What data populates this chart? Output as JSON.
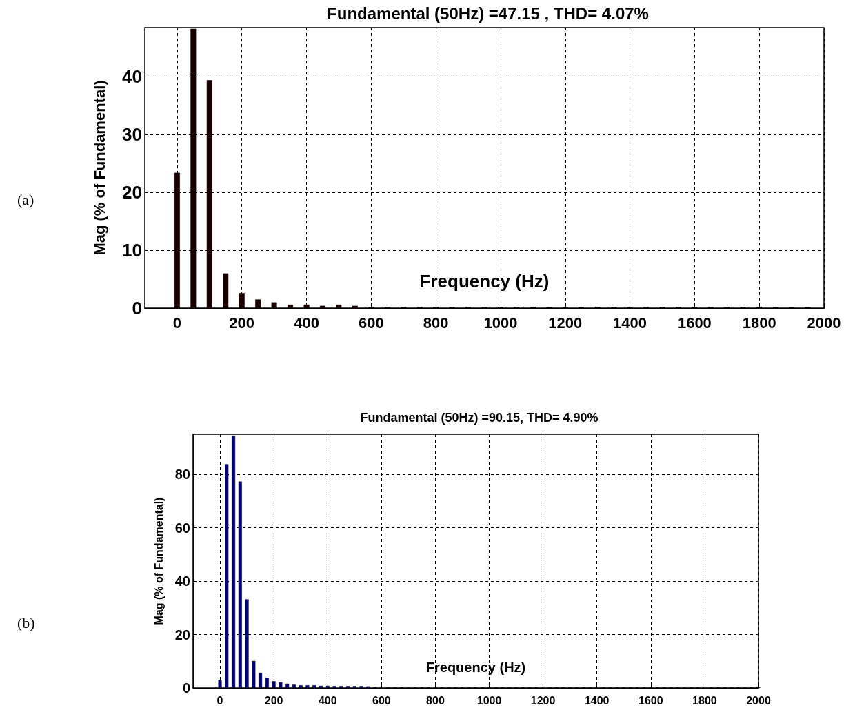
{
  "chart_data": [
    {
      "type": "bar",
      "title": "Fundamental (50Hz) =47.15 , THD= 4.07%",
      "xlabel": "Frequency (Hz)",
      "ylabel": "Mag (% of Fundamental)",
      "annotations": [
        "(a)"
      ],
      "x": [
        0,
        50,
        100,
        150,
        200,
        250,
        300,
        350,
        400,
        450,
        500,
        550,
        600,
        650,
        700,
        750,
        800,
        850,
        900,
        950,
        1000,
        1050,
        1100,
        1150,
        1200,
        1250,
        1300,
        1350,
        1400,
        1450,
        1500,
        1550,
        1600,
        1650,
        1700,
        1750,
        1800,
        1850,
        1900,
        1950
      ],
      "series": [
        {
          "color": "#1a0000",
          "values": [
            23.4,
            48.3,
            39.4,
            6.0,
            2.6,
            1.5,
            1.0,
            0.6,
            0.6,
            0.4,
            0.6,
            0.4,
            0.2,
            0.2,
            0.2,
            0.2,
            0.2,
            0.2,
            0.2,
            0.2,
            0.2,
            0.2,
            0.2,
            0.2,
            0.2,
            0.2,
            0.2,
            0.2,
            0.2,
            0.2,
            0.2,
            0.2,
            0.2,
            0.2,
            0.2,
            0.2,
            0.2,
            0.2,
            0.2,
            0.2
          ]
        }
      ],
      "xlim": [
        -100,
        2000
      ],
      "xticks": [
        0,
        200,
        400,
        600,
        800,
        1000,
        1200,
        1400,
        1600,
        1800,
        2000
      ],
      "ylim": [
        0,
        48.5
      ],
      "yticks": [
        0,
        10,
        20,
        30,
        40
      ],
      "grid": true
    },
    {
      "type": "bar",
      "title": "Fundamental (50Hz) =90.15, THD= 4.90%",
      "xlabel": "Frequency (Hz)",
      "ylabel": "Mag (% of Fundamental)",
      "annotations": [
        "(b)"
      ],
      "x": [
        0,
        25,
        50,
        75,
        100,
        125,
        150,
        175,
        200,
        225,
        250,
        275,
        300,
        325,
        350,
        375,
        400,
        425,
        450,
        475,
        500,
        525,
        550,
        575,
        600,
        625,
        650,
        675,
        700,
        725,
        750,
        775,
        800,
        825,
        850,
        875,
        900,
        925,
        950,
        975,
        1000,
        1025,
        1050,
        1075,
        1100,
        1125,
        1150,
        1175,
        1200,
        1225,
        1250,
        1275,
        1300,
        1325,
        1350,
        1375,
        1400,
        1425,
        1450,
        1475,
        1500,
        1525,
        1550,
        1575,
        1600,
        1625,
        1650,
        1675,
        1700,
        1725,
        1750,
        1775,
        1800,
        1825,
        1850,
        1875,
        1900,
        1925,
        1950,
        1975,
        2000
      ],
      "series": [
        {
          "color": "#00007f",
          "values": [
            2.9,
            83.8,
            94.5,
            77.3,
            33.2,
            10.1,
            5.7,
            3.8,
            2.5,
            2.1,
            1.6,
            1.2,
            1.0,
            1.0,
            1.0,
            0.8,
            0.8,
            0.7,
            0.7,
            0.7,
            0.7,
            0.7,
            0.6,
            0.3,
            0.2,
            0.2,
            0.2,
            0.2,
            0.2,
            0.2,
            0.2,
            0.2,
            0.2,
            0.2,
            0.2,
            0.2,
            0.2,
            0.2,
            0.2,
            0.2,
            0.2,
            0.2,
            0.2,
            0.2,
            0.2,
            0.2,
            0.2,
            0.2,
            0.2,
            0.2,
            0.2,
            0.2,
            0.2,
            0.2,
            0.2,
            0.2,
            0.2,
            0.2,
            0.2,
            0.2,
            0.2,
            0.2,
            0.2,
            0.2,
            0.2,
            0.2,
            0.2,
            0.2,
            0.2,
            0.2,
            0.2,
            0.2,
            0.2,
            0.2,
            0.2,
            0.2,
            0.2,
            0.2,
            0.2,
            0.2,
            0.2
          ]
        }
      ],
      "xlim": [
        -100,
        2000
      ],
      "xticks": [
        0,
        200,
        400,
        600,
        800,
        1000,
        1200,
        1400,
        1600,
        1800,
        2000
      ],
      "ylim": [
        0,
        95
      ],
      "yticks": [
        0,
        20,
        40,
        60,
        80
      ],
      "grid": true
    }
  ]
}
